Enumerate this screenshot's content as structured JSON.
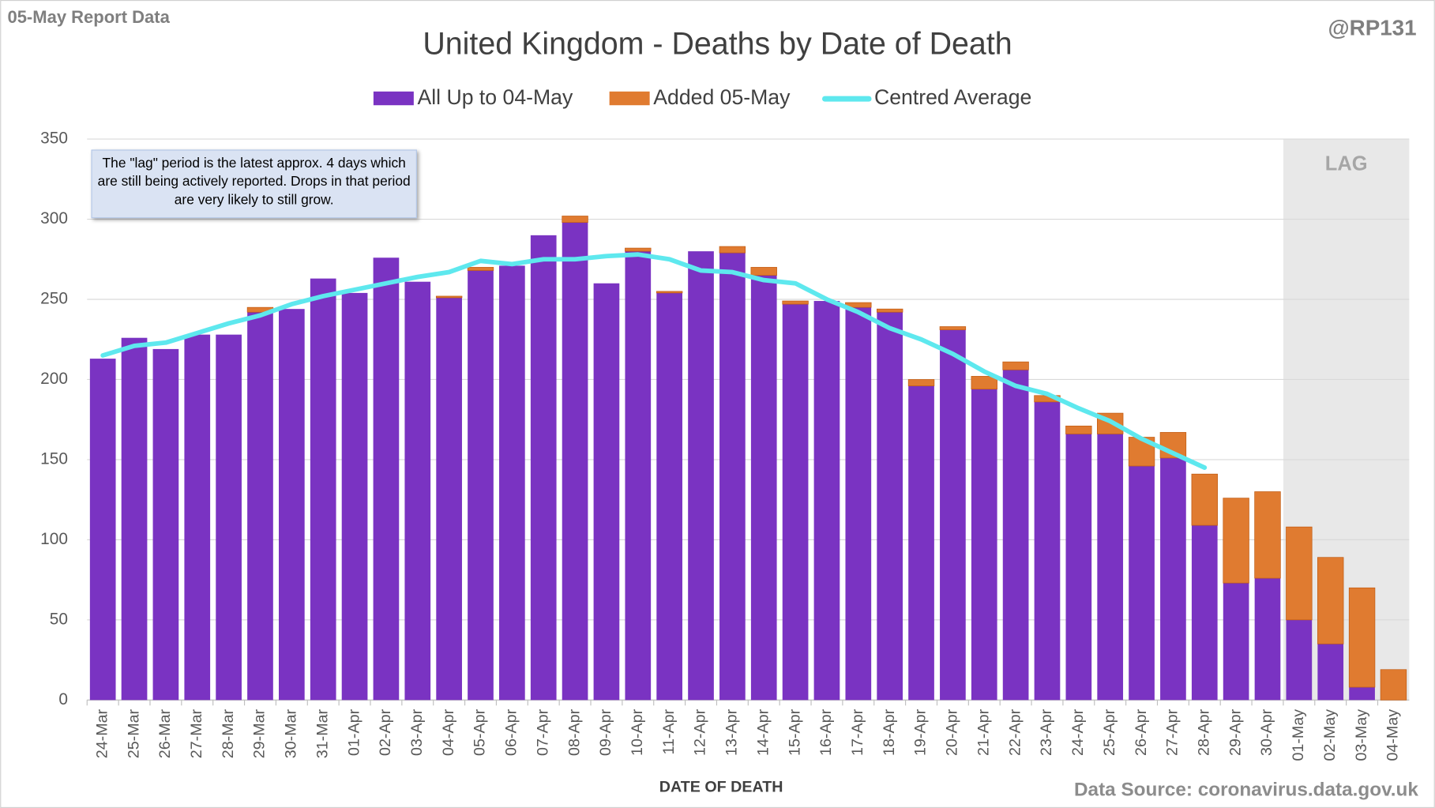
{
  "chart_data": {
    "type": "bar",
    "stacked": true,
    "title": "United Kingdom - Deaths by Date of Death",
    "header_left": "05-May Report Data",
    "header_right": "@RP131",
    "x_label": "DATE OF DEATH",
    "source": "Data Source: coronavirus.data.gov.uk",
    "annotation": "The \"lag\" period is the latest approx. 4 days which are still being actively reported.  Drops in that period are very likely to still grow.",
    "shaded_region": {
      "label": "LAG",
      "from": "01-May",
      "to": "04-May"
    },
    "categories": [
      "24-Mar",
      "25-Mar",
      "26-Mar",
      "27-Mar",
      "28-Mar",
      "29-Mar",
      "30-Mar",
      "31-Mar",
      "01-Apr",
      "02-Apr",
      "03-Apr",
      "04-Apr",
      "05-Apr",
      "06-Apr",
      "07-Apr",
      "08-Apr",
      "09-Apr",
      "10-Apr",
      "11-Apr",
      "12-Apr",
      "13-Apr",
      "14-Apr",
      "15-Apr",
      "16-Apr",
      "17-Apr",
      "18-Apr",
      "19-Apr",
      "20-Apr",
      "21-Apr",
      "22-Apr",
      "23-Apr",
      "24-Apr",
      "25-Apr",
      "26-Apr",
      "27-Apr",
      "28-Apr",
      "29-Apr",
      "30-Apr",
      "01-May",
      "02-May",
      "03-May",
      "04-May"
    ],
    "series": [
      {
        "name": "All Up to 04-May",
        "color": "#7a33c2",
        "values": [
          213,
          226,
          219,
          228,
          228,
          242,
          244,
          263,
          254,
          276,
          261,
          251,
          268,
          271,
          290,
          298,
          260,
          280,
          254,
          280,
          279,
          265,
          247,
          249,
          245,
          242,
          196,
          231,
          194,
          206,
          186,
          166,
          166,
          146,
          151,
          109,
          73,
          76,
          50,
          35,
          8,
          0
        ]
      },
      {
        "name": "Added 05-May",
        "color": "#e07b30",
        "values": [
          0,
          0,
          0,
          0,
          0,
          3,
          0,
          0,
          0,
          0,
          0,
          1,
          2,
          0,
          0,
          4,
          0,
          2,
          1,
          0,
          4,
          5,
          2,
          0,
          3,
          2,
          4,
          2,
          8,
          5,
          4,
          5,
          13,
          18,
          16,
          32,
          53,
          54,
          58,
          54,
          62,
          19
        ]
      },
      {
        "name": "Centred Average",
        "type": "line",
        "color": "#5ee8ee",
        "values": [
          215,
          221,
          223,
          229,
          235,
          240,
          247,
          252,
          256,
          260,
          264,
          267,
          274,
          272,
          275,
          275,
          277,
          278,
          275,
          268,
          267,
          262,
          260,
          250,
          242,
          232,
          225,
          216,
          205,
          196,
          191,
          182,
          174,
          163,
          154,
          145,
          null,
          null,
          null,
          null,
          null,
          null
        ]
      }
    ],
    "ylim": [
      0,
      350
    ],
    "yticks": [
      0,
      50,
      100,
      150,
      200,
      250,
      300,
      350
    ],
    "grid": true
  }
}
